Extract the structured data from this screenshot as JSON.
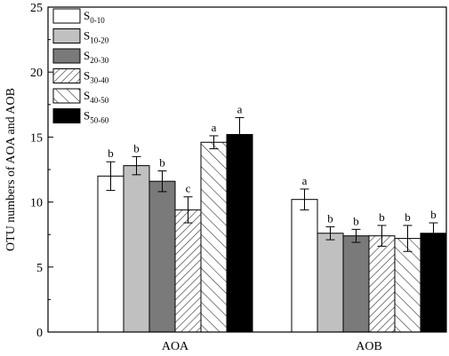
{
  "chart_data": {
    "type": "bar",
    "ylabel": "OTU numbers of AOA and AOB",
    "xlabel": "",
    "ylim": [
      0,
      25
    ],
    "yticks": [
      0,
      5,
      10,
      15,
      20,
      25
    ],
    "categories": [
      "AOA",
      "AOB"
    ],
    "legend_position": "top-left",
    "series": [
      {
        "name": "S",
        "sub": "0-10",
        "style": "white",
        "values": [
          12.0,
          10.2
        ],
        "errors": [
          1.1,
          0.8
        ],
        "labels": [
          "b",
          "a"
        ]
      },
      {
        "name": "S",
        "sub": "10-20",
        "style": "light-gray",
        "values": [
          12.8,
          7.6
        ],
        "errors": [
          0.7,
          0.5
        ],
        "labels": [
          "b",
          "b"
        ]
      },
      {
        "name": "S",
        "sub": "20-30",
        "style": "dark-gray",
        "values": [
          11.6,
          7.4
        ],
        "errors": [
          0.8,
          0.5
        ],
        "labels": [
          "b",
          "b"
        ]
      },
      {
        "name": "S",
        "sub": "30-40",
        "style": "hatch-narrow",
        "values": [
          9.4,
          7.4
        ],
        "errors": [
          1.0,
          0.8
        ],
        "labels": [
          "c",
          "b"
        ]
      },
      {
        "name": "S",
        "sub": "40-50",
        "style": "hatch-wide",
        "values": [
          14.6,
          7.2
        ],
        "errors": [
          0.5,
          1.0
        ],
        "labels": [
          "a",
          "b"
        ]
      },
      {
        "name": "S",
        "sub": "50-60",
        "style": "black",
        "values": [
          15.2,
          7.6
        ],
        "errors": [
          1.3,
          0.8
        ],
        "labels": [
          "a",
          "b"
        ]
      }
    ]
  }
}
